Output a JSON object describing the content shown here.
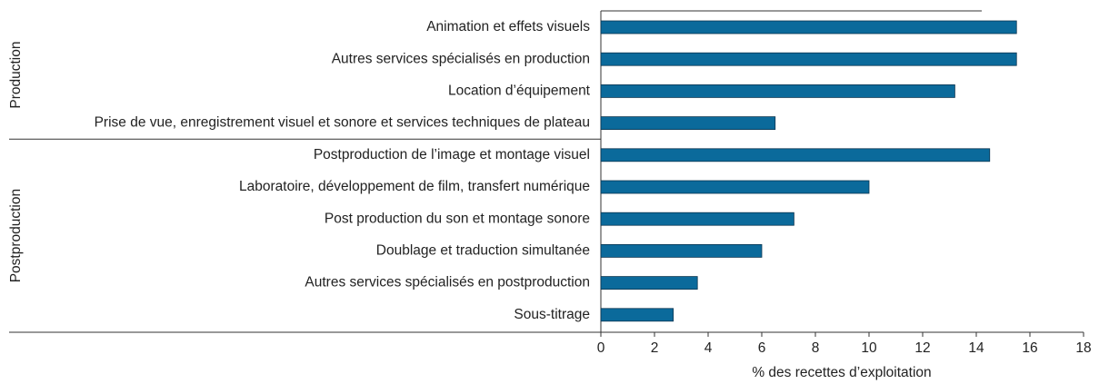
{
  "chart_data": {
    "type": "bar",
    "groups": [
      {
        "name": "Production",
        "categories": [
          "Animation et effets visuels",
          "Autres services spécialisés en production",
          "Location d’équipement",
          "Prise de vue, enregistrement visuel et sonore et services techniques de plateau"
        ],
        "values": [
          15.5,
          15.5,
          13.2,
          6.5
        ]
      },
      {
        "name": "Postproduction",
        "categories": [
          "Postproduction de l’image et montage visuel",
          "Laboratoire, développement de film, transfert numérique",
          "Post production du son et montage sonore",
          "Doublage et traduction simultanée",
          "Autres services spécialisés en postproduction",
          "Sous-titrage"
        ],
        "values": [
          14.5,
          10.0,
          7.2,
          6.0,
          3.6,
          2.7
        ]
      }
    ],
    "color": "#0b6a9b",
    "xlabel": "% des recettes d’exploitation",
    "xlim": [
      0,
      18
    ],
    "xticks": [
      0,
      2,
      4,
      6,
      8,
      10,
      12,
      14,
      16,
      18
    ]
  }
}
